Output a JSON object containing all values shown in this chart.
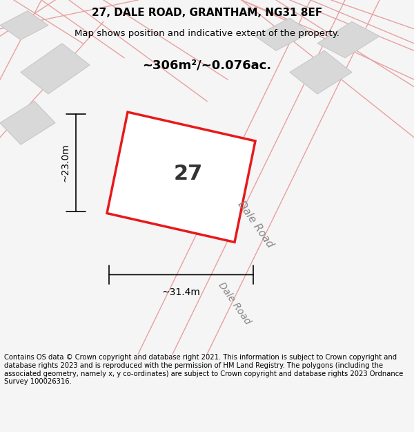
{
  "title_line1": "27, DALE ROAD, GRANTHAM, NG31 8EF",
  "title_line2": "Map shows position and indicative extent of the property.",
  "area_text": "~306m²/~0.076ac.",
  "property_number": "27",
  "dim_width": "~31.4m",
  "dim_height": "~23.0m",
  "footer_text": "Contains OS data © Crown copyright and database right 2021. This information is subject to Crown copyright and database rights 2023 and is reproduced with the permission of HM Land Registry. The polygons (including the associated geometry, namely x, y co-ordinates) are subject to Crown copyright and database rights 2023 Ordnance Survey 100026316.",
  "background_color": "#f5f5f5",
  "map_bg_color": "#ffffff",
  "property_fill": "#ffffff",
  "property_edge": "#e8191a",
  "neighbor_fill": "#d8d8d8",
  "neighbor_edge": "#c8c8c8",
  "road_line_color": "#e8a0a0",
  "dim_line_color": "#000000",
  "road_label_color": "#888888",
  "title_color": "#000000",
  "footer_color": "#000000"
}
